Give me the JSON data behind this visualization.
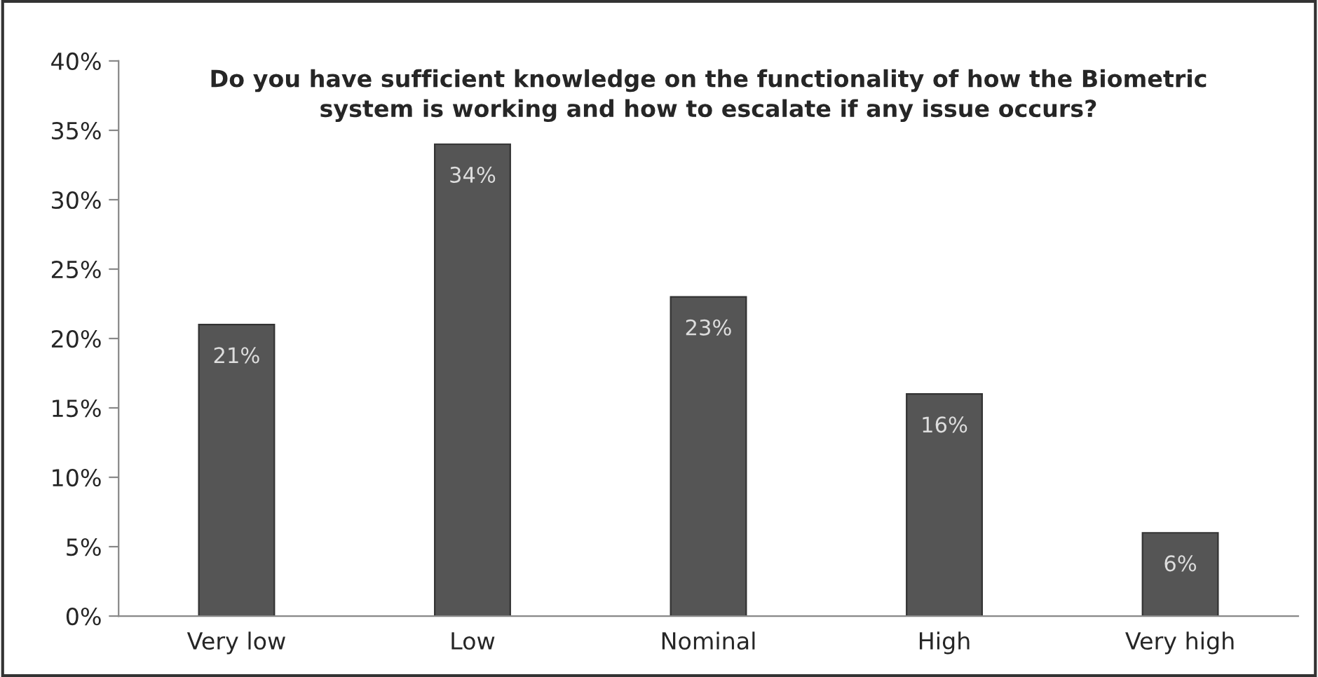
{
  "chart_data": {
    "type": "bar",
    "title": "Do you have sufficient knowledge on the functionality of how the Biometric\nsystem is working and how to escalate if any issue occurs?",
    "categories": [
      "Very low",
      "Low",
      "Nominal",
      "High",
      "Very high"
    ],
    "values": [
      21,
      34,
      23,
      16,
      6
    ],
    "color": "#555555",
    "value_labels": [
      "21%",
      "34%",
      "23%",
      "16%",
      "6%"
    ],
    "ylim": [
      0,
      40
    ],
    "yticks": [
      {
        "value": 0,
        "label": "0%"
      },
      {
        "value": 5,
        "label": "5%"
      },
      {
        "value": 10,
        "label": "10%"
      },
      {
        "value": 15,
        "label": "15%"
      },
      {
        "value": 20,
        "label": "20%"
      },
      {
        "value": 25,
        "label": "25%"
      },
      {
        "value": 30,
        "label": "30%"
      },
      {
        "value": 35,
        "label": "35%"
      },
      {
        "value": 40,
        "label": "40%"
      }
    ],
    "grid": false,
    "legend": false
  }
}
